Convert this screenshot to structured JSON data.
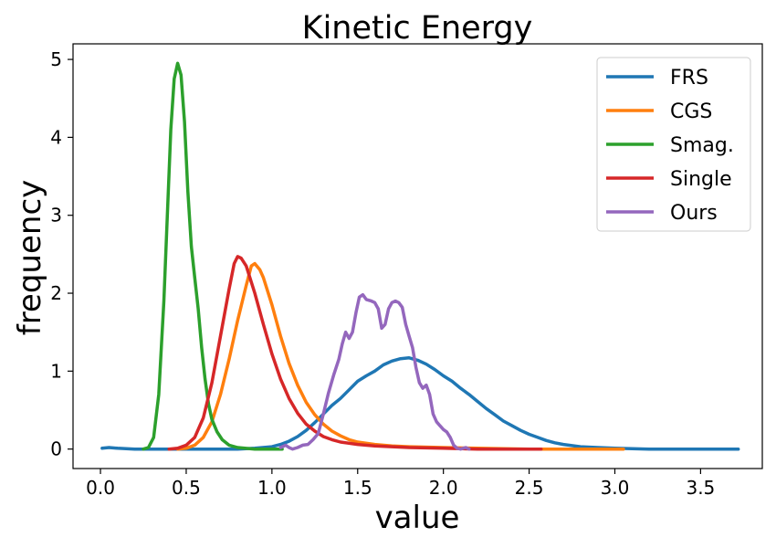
{
  "chart_data": {
    "type": "line",
    "title": "Kinetic Energy",
    "xlabel": "value",
    "ylabel": "frequency",
    "xlim": [
      -0.16,
      3.86
    ],
    "ylim": [
      -0.25,
      5.2
    ],
    "xticks": [
      0.0,
      0.5,
      1.0,
      1.5,
      2.0,
      2.5,
      3.0,
      3.5
    ],
    "xtick_labels": [
      "0.0",
      "0.5",
      "1.0",
      "1.5",
      "2.0",
      "2.5",
      "3.0",
      "3.5"
    ],
    "yticks": [
      0,
      1,
      2,
      3,
      4,
      5
    ],
    "ytick_labels": [
      "0",
      "1",
      "2",
      "3",
      "4",
      "5"
    ],
    "legend_position": "top-right",
    "series": [
      {
        "name": "FRS",
        "color": "#1f77b4",
        "points": [
          [
            0.01,
            0.01
          ],
          [
            0.05,
            0.02
          ],
          [
            0.1,
            0.01
          ],
          [
            0.2,
            0.0
          ],
          [
            0.4,
            0.0
          ],
          [
            0.6,
            0.0
          ],
          [
            0.8,
            0.0
          ],
          [
            0.9,
            0.01
          ],
          [
            1.0,
            0.03
          ],
          [
            1.05,
            0.06
          ],
          [
            1.1,
            0.1
          ],
          [
            1.15,
            0.16
          ],
          [
            1.2,
            0.24
          ],
          [
            1.25,
            0.34
          ],
          [
            1.3,
            0.45
          ],
          [
            1.35,
            0.56
          ],
          [
            1.4,
            0.65
          ],
          [
            1.45,
            0.76
          ],
          [
            1.5,
            0.87
          ],
          [
            1.55,
            0.94
          ],
          [
            1.6,
            1.0
          ],
          [
            1.65,
            1.08
          ],
          [
            1.7,
            1.13
          ],
          [
            1.75,
            1.16
          ],
          [
            1.8,
            1.17
          ],
          [
            1.85,
            1.14
          ],
          [
            1.9,
            1.09
          ],
          [
            1.95,
            1.02
          ],
          [
            2.0,
            0.94
          ],
          [
            2.05,
            0.87
          ],
          [
            2.1,
            0.78
          ],
          [
            2.15,
            0.7
          ],
          [
            2.2,
            0.61
          ],
          [
            2.25,
            0.52
          ],
          [
            2.3,
            0.44
          ],
          [
            2.35,
            0.36
          ],
          [
            2.4,
            0.3
          ],
          [
            2.45,
            0.24
          ],
          [
            2.5,
            0.19
          ],
          [
            2.55,
            0.15
          ],
          [
            2.6,
            0.11
          ],
          [
            2.65,
            0.08
          ],
          [
            2.7,
            0.06
          ],
          [
            2.8,
            0.03
          ],
          [
            2.9,
            0.02
          ],
          [
            3.0,
            0.01
          ],
          [
            3.2,
            0.0
          ],
          [
            3.5,
            0.0
          ],
          [
            3.72,
            0.0
          ]
        ]
      },
      {
        "name": "CGS",
        "color": "#ff7f0e",
        "points": [
          [
            0.45,
            0.0
          ],
          [
            0.5,
            0.01
          ],
          [
            0.55,
            0.05
          ],
          [
            0.6,
            0.15
          ],
          [
            0.65,
            0.35
          ],
          [
            0.7,
            0.7
          ],
          [
            0.75,
            1.15
          ],
          [
            0.8,
            1.65
          ],
          [
            0.85,
            2.1
          ],
          [
            0.88,
            2.35
          ],
          [
            0.9,
            2.38
          ],
          [
            0.93,
            2.3
          ],
          [
            0.95,
            2.2
          ],
          [
            1.0,
            1.85
          ],
          [
            1.05,
            1.45
          ],
          [
            1.1,
            1.1
          ],
          [
            1.15,
            0.82
          ],
          [
            1.2,
            0.6
          ],
          [
            1.25,
            0.44
          ],
          [
            1.3,
            0.32
          ],
          [
            1.35,
            0.23
          ],
          [
            1.4,
            0.17
          ],
          [
            1.45,
            0.12
          ],
          [
            1.5,
            0.09
          ],
          [
            1.6,
            0.06
          ],
          [
            1.7,
            0.04
          ],
          [
            1.8,
            0.03
          ],
          [
            2.0,
            0.02
          ],
          [
            2.2,
            0.01
          ],
          [
            2.5,
            0.0
          ],
          [
            3.05,
            0.0
          ]
        ]
      },
      {
        "name": "Smag.",
        "color": "#2ca02c",
        "points": [
          [
            0.25,
            0.0
          ],
          [
            0.28,
            0.02
          ],
          [
            0.31,
            0.15
          ],
          [
            0.34,
            0.7
          ],
          [
            0.37,
            1.9
          ],
          [
            0.39,
            3.0
          ],
          [
            0.41,
            4.1
          ],
          [
            0.43,
            4.75
          ],
          [
            0.45,
            4.95
          ],
          [
            0.47,
            4.8
          ],
          [
            0.49,
            4.2
          ],
          [
            0.51,
            3.3
          ],
          [
            0.53,
            2.6
          ],
          [
            0.55,
            2.2
          ],
          [
            0.57,
            1.8
          ],
          [
            0.59,
            1.3
          ],
          [
            0.61,
            0.9
          ],
          [
            0.63,
            0.58
          ],
          [
            0.65,
            0.38
          ],
          [
            0.68,
            0.22
          ],
          [
            0.71,
            0.12
          ],
          [
            0.75,
            0.05
          ],
          [
            0.8,
            0.02
          ],
          [
            0.9,
            0.0
          ],
          [
            1.06,
            0.0
          ]
        ]
      },
      {
        "name": "Single",
        "color": "#d62728",
        "points": [
          [
            0.4,
            0.0
          ],
          [
            0.45,
            0.01
          ],
          [
            0.5,
            0.05
          ],
          [
            0.55,
            0.15
          ],
          [
            0.6,
            0.4
          ],
          [
            0.65,
            0.85
          ],
          [
            0.7,
            1.45
          ],
          [
            0.75,
            2.05
          ],
          [
            0.78,
            2.38
          ],
          [
            0.8,
            2.47
          ],
          [
            0.82,
            2.45
          ],
          [
            0.85,
            2.35
          ],
          [
            0.9,
            2.0
          ],
          [
            0.95,
            1.6
          ],
          [
            1.0,
            1.22
          ],
          [
            1.05,
            0.9
          ],
          [
            1.1,
            0.65
          ],
          [
            1.15,
            0.46
          ],
          [
            1.2,
            0.32
          ],
          [
            1.25,
            0.23
          ],
          [
            1.3,
            0.16
          ],
          [
            1.35,
            0.12
          ],
          [
            1.4,
            0.09
          ],
          [
            1.5,
            0.06
          ],
          [
            1.6,
            0.04
          ],
          [
            1.8,
            0.02
          ],
          [
            2.0,
            0.01
          ],
          [
            2.2,
            0.0
          ],
          [
            2.57,
            0.0
          ]
        ]
      },
      {
        "name": "Ours",
        "color": "#9467bd",
        "points": [
          [
            1.05,
            0.02
          ],
          [
            1.08,
            0.05
          ],
          [
            1.1,
            0.02
          ],
          [
            1.12,
            0.0
          ],
          [
            1.15,
            0.02
          ],
          [
            1.18,
            0.05
          ],
          [
            1.21,
            0.06
          ],
          [
            1.24,
            0.12
          ],
          [
            1.27,
            0.2
          ],
          [
            1.3,
            0.45
          ],
          [
            1.33,
            0.72
          ],
          [
            1.36,
            0.95
          ],
          [
            1.39,
            1.15
          ],
          [
            1.41,
            1.35
          ],
          [
            1.43,
            1.5
          ],
          [
            1.45,
            1.42
          ],
          [
            1.47,
            1.5
          ],
          [
            1.49,
            1.75
          ],
          [
            1.51,
            1.95
          ],
          [
            1.53,
            1.98
          ],
          [
            1.55,
            1.92
          ],
          [
            1.58,
            1.9
          ],
          [
            1.6,
            1.88
          ],
          [
            1.62,
            1.8
          ],
          [
            1.64,
            1.55
          ],
          [
            1.66,
            1.6
          ],
          [
            1.68,
            1.8
          ],
          [
            1.7,
            1.88
          ],
          [
            1.72,
            1.9
          ],
          [
            1.74,
            1.88
          ],
          [
            1.76,
            1.82
          ],
          [
            1.78,
            1.6
          ],
          [
            1.8,
            1.45
          ],
          [
            1.82,
            1.3
          ],
          [
            1.84,
            1.05
          ],
          [
            1.86,
            0.85
          ],
          [
            1.88,
            0.78
          ],
          [
            1.9,
            0.82
          ],
          [
            1.92,
            0.7
          ],
          [
            1.94,
            0.45
          ],
          [
            1.96,
            0.35
          ],
          [
            1.98,
            0.3
          ],
          [
            2.0,
            0.25
          ],
          [
            2.02,
            0.22
          ],
          [
            2.04,
            0.15
          ],
          [
            2.06,
            0.05
          ],
          [
            2.08,
            0.01
          ],
          [
            2.1,
            0.0
          ],
          [
            2.13,
            0.02
          ],
          [
            2.15,
            0.0
          ]
        ]
      }
    ]
  }
}
